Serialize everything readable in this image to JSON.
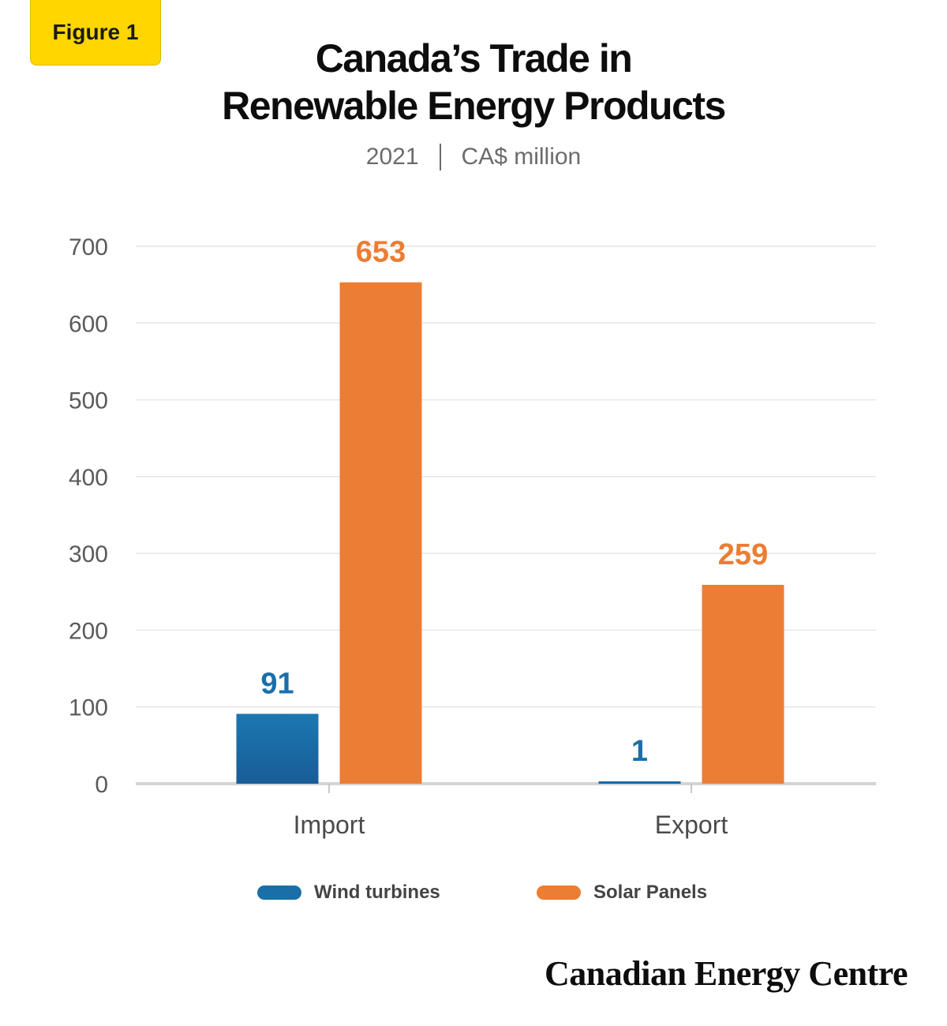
{
  "badge": {
    "label": "Figure 1"
  },
  "header": {
    "title_line1": "Canada’s Trade in",
    "title_line2": "Renewable Energy Products",
    "subtitle_year": "2021",
    "subtitle_unit": "CA$ million"
  },
  "colors": {
    "wind": "#1B6FA8",
    "solar": "#EC7D34",
    "badge": "#FFD600",
    "grid": "#e6e6e6"
  },
  "chart_data": {
    "type": "bar",
    "categories": [
      "Import",
      "Export"
    ],
    "series": [
      {
        "name": "Wind turbines",
        "values": [
          91,
          1
        ]
      },
      {
        "name": "Solar Panels",
        "values": [
          653,
          259
        ]
      }
    ],
    "title": "Canada’s Trade in Renewable Energy Products",
    "subtitle": "2021 | CA$ million",
    "ylim": [
      0,
      700
    ],
    "yticks": [
      0,
      100,
      200,
      300,
      400,
      500,
      600,
      700
    ],
    "grid": true,
    "legend": "bottom"
  },
  "legend": {
    "items": [
      {
        "label": "Wind turbines"
      },
      {
        "label": "Solar Panels"
      }
    ]
  },
  "brand": {
    "name": "Canadian Energy Centre"
  }
}
